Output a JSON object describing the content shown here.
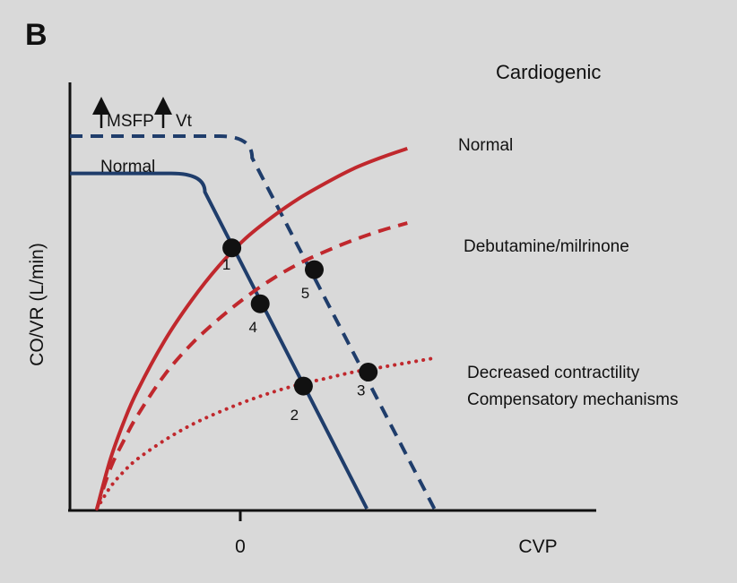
{
  "chart_data": {
    "type": "line",
    "panel_label": "B",
    "title": "Cardiogenic",
    "xlabel": "CVP",
    "ylabel": "CO/VR (L/min)",
    "xlim": [
      -10,
      28
    ],
    "ylim": [
      0,
      12
    ],
    "x_ticks": [
      0
    ],
    "x_tick_labels": [
      "0"
    ],
    "grid": false,
    "colors": {
      "venous": "#1f3d6b",
      "cardiac": "#c0282d"
    },
    "series": [
      {
        "name": "Normal",
        "kind": "venous_return",
        "style": "solid",
        "color": "#1f3d6b",
        "x": [
          -10,
          -2.5,
          0,
          12
        ],
        "y": [
          10.8,
          10.8,
          10.2,
          0
        ]
      },
      {
        "name": "MSFP Vt",
        "kind": "venous_return",
        "style": "dashed",
        "color": "#1f3d6b",
        "x": [
          -10,
          1.1,
          3.5,
          17
        ],
        "y": [
          12,
          12,
          11.3,
          0
        ]
      },
      {
        "name": "Normal",
        "kind": "cardiac_function",
        "style": "solid",
        "color": "#c0282d",
        "x": [
          -8,
          -7,
          -6,
          -5,
          -3,
          -1,
          1,
          3,
          5,
          7,
          9,
          11,
          13,
          15
        ],
        "y": [
          0,
          1.6,
          2.8,
          3.8,
          5.4,
          6.7,
          7.8,
          8.7,
          9.4,
          10,
          10.5,
          10.95,
          11.3,
          11.6
        ]
      },
      {
        "name": "Debutamine/milrinone",
        "kind": "cardiac_function",
        "style": "dashed",
        "color": "#c0282d",
        "x": [
          -8,
          -7,
          -6,
          -5,
          -3,
          -1,
          1,
          3,
          5,
          7,
          9,
          11,
          13,
          15
        ],
        "y": [
          0,
          1.3,
          2.2,
          3,
          4.3,
          5.3,
          6.1,
          6.8,
          7.4,
          7.9,
          8.3,
          8.65,
          8.95,
          9.2
        ]
      },
      {
        "name": "Decreased contractility Compensatory mechanisms",
        "kind": "cardiac_function",
        "style": "dotted",
        "color": "#c0282d",
        "x": [
          -8,
          -7,
          -6,
          -5,
          -3,
          -1,
          1,
          3,
          5,
          7,
          9,
          11,
          13,
          15,
          17
        ],
        "y": [
          0,
          0.7,
          1.2,
          1.6,
          2.2,
          2.7,
          3.1,
          3.45,
          3.75,
          4,
          4.2,
          4.4,
          4.55,
          4.7,
          4.85
        ]
      }
    ],
    "points": [
      {
        "label": "1",
        "x": 2,
        "y": 8.4
      },
      {
        "label": "2",
        "x": 7.3,
        "y": 3.95
      },
      {
        "label": "3",
        "x": 12.1,
        "y": 4.4
      },
      {
        "label": "4",
        "x": 4.1,
        "y": 6.6
      },
      {
        "label": "5",
        "x": 8.1,
        "y": 7.7
      }
    ],
    "annotations": {
      "venous_up_label_1": "MSFP",
      "venous_up_label_2": "Vt",
      "venous_normal_label": "Normal",
      "cardiac_normal_label": "Normal",
      "debutamine_label": "Debutamine/milrinone",
      "decreased_label_line1": "Decreased contractility",
      "decreased_label_line2": "Compensatory mechanisms"
    }
  }
}
